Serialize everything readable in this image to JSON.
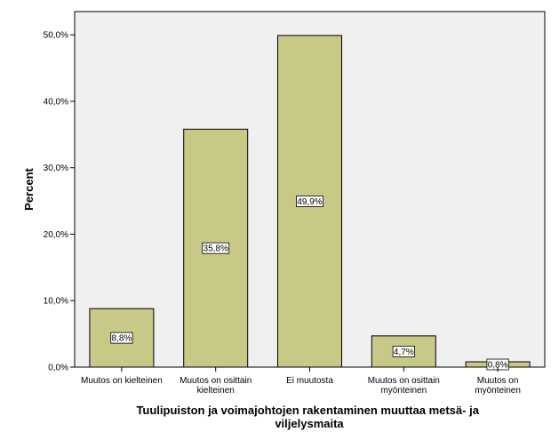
{
  "chart_data": {
    "type": "bar",
    "categories": [
      [
        "Muutos on kielteinen"
      ],
      [
        "Muutos on osittain",
        "kielteinen"
      ],
      [
        "Ei muutosta"
      ],
      [
        "Muutos on osittain",
        "myönteinen"
      ],
      [
        "Muutos on",
        "myönteinen"
      ]
    ],
    "values": [
      8.8,
      35.8,
      49.9,
      4.7,
      0.8
    ],
    "data_labels": [
      "8,8%",
      "35,8%",
      "49,9%",
      "4,7%",
      "0,8%"
    ],
    "ylabel": "Percent",
    "xlabel": [
      "Tuulipuiston ja voimajohtojen rakentaminen muuttaa metsä- ja",
      "viljelysmaita"
    ],
    "ylim": [
      0,
      53.5
    ],
    "yticks": [
      0,
      10,
      20,
      30,
      40,
      50
    ],
    "ytick_labels": [
      "0,0%",
      "10,0%",
      "20,0%",
      "30,0%",
      "40,0%",
      "50,0%"
    ],
    "grid": false,
    "legend": "none",
    "colors": {
      "bar_fill": "#c8c887",
      "bar_stroke": "#000000",
      "plot_background": "#f0f0f0",
      "label_background": "#ffffff"
    }
  }
}
